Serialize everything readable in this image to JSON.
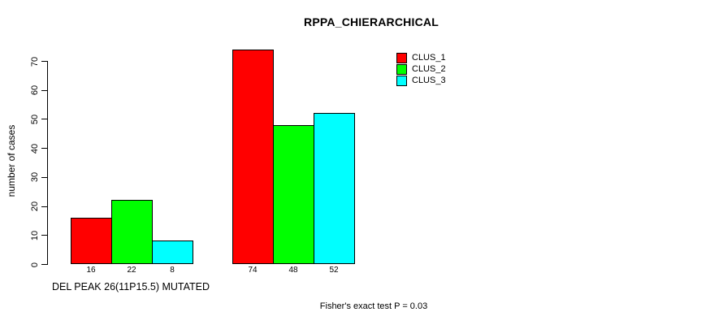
{
  "title": "RPPA_CHIERARCHICAL",
  "footnote": "Fisher's exact test P = 0.03",
  "chart_data": {
    "type": "bar",
    "title": "RPPA_CHIERARCHICAL",
    "xlabel": "",
    "ylabel": "number of cases",
    "categories": [
      "DEL PEAK 26(11P15.5) MUTATED",
      ""
    ],
    "series": [
      {
        "name": "CLUS_1",
        "color": "#ff0000",
        "values": [
          16,
          74
        ]
      },
      {
        "name": "CLUS_2",
        "color": "#00ff00",
        "values": [
          22,
          48
        ]
      },
      {
        "name": "CLUS_3",
        "color": "#00ffff",
        "values": [
          8,
          52
        ]
      }
    ],
    "bar_value_labels": [
      [
        16,
        74
      ],
      [
        22,
        48
      ],
      [
        8,
        52
      ]
    ],
    "ylim": [
      0,
      74
    ],
    "yticks": [
      0,
      10,
      20,
      30,
      40,
      50,
      60,
      70
    ],
    "grid": false,
    "legend_position": "top-right",
    "bar_outline_color": "#000000",
    "annotation": "Fisher's exact test P = 0.03"
  }
}
